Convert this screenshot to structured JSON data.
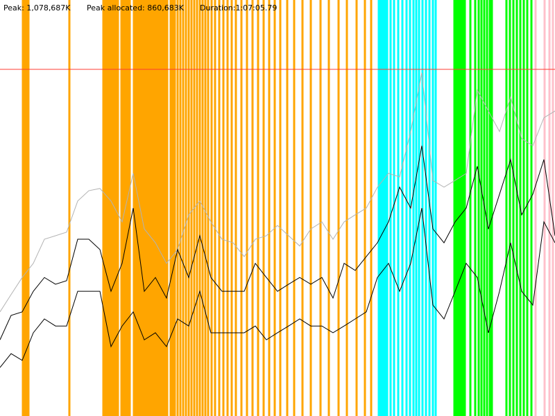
{
  "header": {
    "peak": "Peak: 1,078,687K",
    "peak_allocated": "Peak allocated: 860,683K",
    "duration": "Duration:1:07:05.79"
  },
  "chart_data": {
    "type": "line",
    "x": [
      0,
      16,
      32,
      48,
      64,
      80,
      96,
      112,
      128,
      144,
      160,
      176,
      192,
      208,
      224,
      240,
      256,
      272,
      288,
      304,
      320,
      336,
      352,
      368,
      384,
      400,
      416,
      432,
      448,
      464,
      480,
      496,
      512,
      528,
      544,
      560,
      576,
      592,
      608,
      624,
      640,
      656,
      672,
      688,
      704,
      720,
      736,
      752,
      768,
      784,
      800
    ],
    "xlim": [
      0,
      800
    ],
    "ylim": [
      0,
      1294424
    ],
    "peak_line": {
      "value": 1078687,
      "color": "#ff3b30"
    },
    "series": [
      {
        "color": "#b3b3b3",
        "values": [
          324000,
          378000,
          431000,
          475000,
          550000,
          561000,
          572000,
          669000,
          701000,
          708000,
          669000,
          604000,
          755000,
          582000,
          539000,
          475000,
          518000,
          626000,
          669000,
          604000,
          550000,
          539000,
          496000,
          550000,
          561000,
          593000,
          561000,
          529000,
          582000,
          604000,
          550000,
          604000,
          626000,
          647000,
          712000,
          755000,
          744000,
          885000,
          1068000,
          733000,
          712000,
          733000,
          755000,
          1014000,
          949000,
          885000,
          992000,
          863000,
          841000,
          928000,
          949000
        ]
      },
      {
        "color": "#000000",
        "values": [
          237000,
          313000,
          324000,
          388000,
          431000,
          410000,
          421000,
          550000,
          550000,
          518000,
          388000,
          475000,
          647000,
          388000,
          431000,
          367000,
          518000,
          431000,
          561000,
          431000,
          388000,
          388000,
          388000,
          475000,
          431000,
          388000,
          410000,
          431000,
          410000,
          431000,
          367000,
          475000,
          453000,
          496000,
          539000,
          604000,
          712000,
          647000,
          841000,
          582000,
          539000,
          604000,
          647000,
          777000,
          582000,
          690000,
          798000,
          626000,
          690000,
          798000,
          561000
        ]
      },
      {
        "color": "#000000",
        "values": [
          151000,
          194000,
          173000,
          259000,
          302000,
          280000,
          280000,
          388000,
          388000,
          388000,
          216000,
          280000,
          324000,
          237000,
          259000,
          216000,
          302000,
          280000,
          388000,
          259000,
          259000,
          259000,
          259000,
          280000,
          237000,
          259000,
          280000,
          302000,
          280000,
          280000,
          259000,
          280000,
          302000,
          324000,
          431000,
          475000,
          388000,
          475000,
          647000,
          345000,
          302000,
          388000,
          475000,
          431000,
          259000,
          388000,
          539000,
          388000,
          345000,
          604000,
          539000
        ]
      }
    ],
    "bands": [
      {
        "color": "#ffa500",
        "x": [
          33,
          36,
          39,
          41,
          100,
          149,
          152,
          155,
          158,
          161,
          164,
          167,
          170,
          175,
          178,
          181,
          184,
          187,
          193,
          196,
          199,
          202,
          205,
          208,
          211,
          214,
          217,
          220,
          223,
          226,
          229,
          232,
          235,
          238,
          241,
          246,
          249,
          252,
          256,
          260,
          264,
          268,
          272,
          276,
          280,
          284,
          288,
          292,
          296,
          300,
          305,
          310,
          316,
          322,
          328,
          334,
          340,
          348,
          356,
          364,
          372,
          380,
          388,
          396,
          404,
          414,
          424,
          436,
          448,
          462,
          474,
          488,
          500,
          514,
          526,
          535
        ]
      },
      {
        "color": "#00ffff",
        "x": [
          546,
          549,
          552,
          555,
          558,
          563,
          568,
          574,
          580,
          586,
          591,
          596,
          600,
          604,
          609,
          614,
          619,
          624,
          628
        ]
      },
      {
        "color": "#00ff00",
        "x": [
          655,
          658,
          661,
          664,
          667,
          670,
          678,
          685,
          690,
          694,
          698,
          702,
          706,
          709,
          730,
          735,
          740,
          745,
          750,
          755,
          760,
          766
        ]
      },
      {
        "color": "#ffc0cb",
        "x": [
          772,
          785,
          792,
          797
        ]
      }
    ]
  }
}
